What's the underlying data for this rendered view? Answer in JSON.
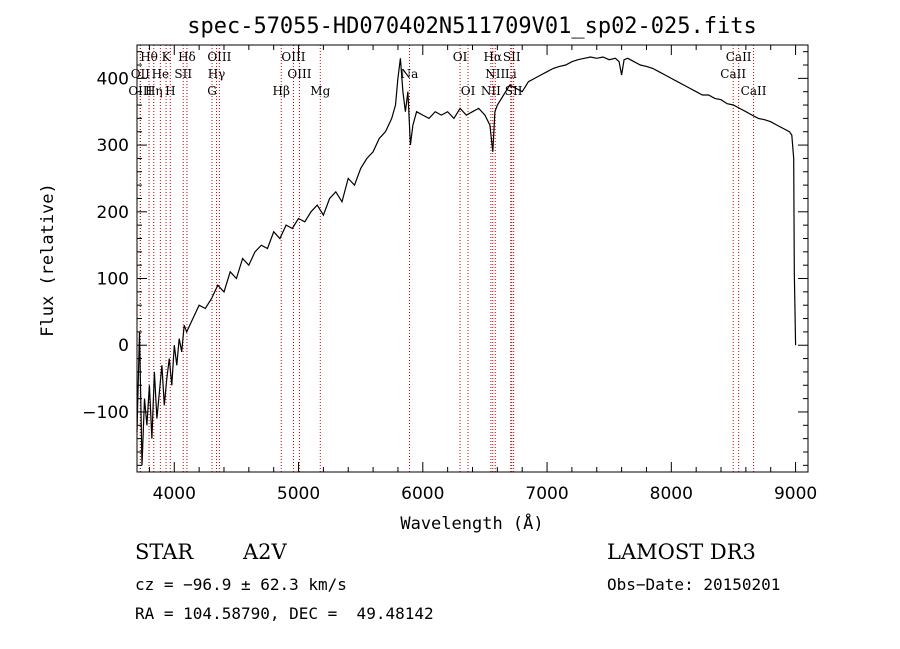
{
  "chart_data": {
    "type": "line",
    "title": "spec-57055-HD070402N511709V01_sp02-025.fits",
    "xlabel": "Wavelength (Å)",
    "ylabel": "Flux (relative)",
    "xlim": [
      3700,
      9100
    ],
    "ylim": [
      -190,
      450
    ],
    "xticks": [
      4000,
      5000,
      6000,
      7000,
      8000,
      9000
    ],
    "yticks": [
      -100,
      0,
      100,
      200,
      300,
      400
    ],
    "xtick_labels": [
      "4000",
      "5000",
      "6000",
      "7000",
      "8000",
      "9000"
    ],
    "ytick_labels": [
      "−100",
      "0",
      "100",
      "200",
      "300",
      "400"
    ],
    "series": [
      {
        "name": "flux",
        "x": [
          3700,
          3720,
          3740,
          3760,
          3780,
          3800,
          3820,
          3840,
          3860,
          3880,
          3900,
          3920,
          3940,
          3960,
          3980,
          4000,
          4020,
          4040,
          4060,
          4080,
          4100,
          4150,
          4200,
          4250,
          4300,
          4350,
          4400,
          4450,
          4500,
          4550,
          4600,
          4650,
          4700,
          4750,
          4800,
          4850,
          4900,
          4950,
          5000,
          5050,
          5100,
          5150,
          5200,
          5250,
          5300,
          5350,
          5400,
          5450,
          5500,
          5550,
          5600,
          5650,
          5700,
          5750,
          5780,
          5800,
          5820,
          5840,
          5860,
          5880,
          5900,
          5920,
          5950,
          6000,
          6050,
          6100,
          6150,
          6200,
          6250,
          6300,
          6350,
          6400,
          6450,
          6500,
          6540,
          6563,
          6580,
          6600,
          6650,
          6700,
          6750,
          6800,
          6850,
          6900,
          6950,
          7000,
          7050,
          7100,
          7150,
          7200,
          7250,
          7300,
          7350,
          7400,
          7450,
          7500,
          7550,
          7580,
          7600,
          7620,
          7650,
          7700,
          7750,
          7800,
          7850,
          7900,
          7950,
          8000,
          8050,
          8100,
          8150,
          8200,
          8250,
          8300,
          8350,
          8400,
          8450,
          8500,
          8550,
          8600,
          8650,
          8700,
          8750,
          8800,
          8850,
          8900,
          8950,
          8970,
          8985,
          8990,
          9000
        ],
        "y": [
          -130,
          20,
          -180,
          -80,
          -120,
          -60,
          -140,
          -40,
          -110,
          -70,
          -30,
          -90,
          -50,
          -20,
          -60,
          0,
          -30,
          10,
          -10,
          30,
          20,
          40,
          60,
          55,
          70,
          90,
          80,
          110,
          100,
          130,
          120,
          140,
          150,
          145,
          170,
          160,
          180,
          175,
          190,
          185,
          200,
          210,
          195,
          220,
          230,
          215,
          250,
          240,
          265,
          280,
          290,
          310,
          320,
          340,
          360,
          400,
          430,
          380,
          350,
          380,
          300,
          330,
          350,
          345,
          340,
          350,
          345,
          350,
          340,
          355,
          345,
          350,
          355,
          345,
          330,
          290,
          350,
          360,
          375,
          390,
          385,
          380,
          395,
          400,
          405,
          410,
          415,
          418,
          420,
          425,
          428,
          430,
          432,
          430,
          432,
          428,
          430,
          425,
          405,
          428,
          430,
          425,
          420,
          418,
          415,
          410,
          405,
          400,
          395,
          390,
          385,
          380,
          375,
          375,
          370,
          368,
          362,
          360,
          355,
          350,
          345,
          340,
          338,
          335,
          330,
          325,
          320,
          315,
          280,
          110,
          0
        ]
      }
    ],
    "spectral_lines": [
      {
        "name": "Hθ",
        "x": 3797,
        "row": 0
      },
      {
        "name": "K",
        "x": 3934,
        "row": 0
      },
      {
        "name": "Hδ",
        "x": 4102,
        "row": 0
      },
      {
        "name": "OIII",
        "x": 4363,
        "row": 0
      },
      {
        "name": "OIII",
        "x": 4959,
        "row": 0
      },
      {
        "name": "OI",
        "x": 6300,
        "row": 0
      },
      {
        "name": "Hα",
        "x": 6563,
        "row": 0
      },
      {
        "name": "SII",
        "x": 6716,
        "row": 0
      },
      {
        "name": "CaII",
        "x": 8542,
        "row": 0
      },
      {
        "name": "OII",
        "x": 3727,
        "row": 1
      },
      {
        "name": "He",
        "x": 3888,
        "row": 1
      },
      {
        "name": "SII",
        "x": 4072,
        "row": 1
      },
      {
        "name": "Hγ",
        "x": 4340,
        "row": 1
      },
      {
        "name": "OIII",
        "x": 5007,
        "row": 1
      },
      {
        "name": "Na",
        "x": 5893,
        "row": 1
      },
      {
        "name": "NII",
        "x": 6583,
        "row": 1
      },
      {
        "name": "Li",
        "x": 6708,
        "row": 1
      },
      {
        "name": "CaII",
        "x": 8498,
        "row": 1
      },
      {
        "name": "OIII",
        "x": 3727,
        "row": 2
      },
      {
        "name": "Hη",
        "x": 3835,
        "row": 2
      },
      {
        "name": "H",
        "x": 3968,
        "row": 2
      },
      {
        "name": "G",
        "x": 4304,
        "row": 2
      },
      {
        "name": "Hβ",
        "x": 4861,
        "row": 2
      },
      {
        "name": "Mg",
        "x": 5175,
        "row": 2
      },
      {
        "name": "OI",
        "x": 6364,
        "row": 2
      },
      {
        "name": "NII",
        "x": 6548,
        "row": 2
      },
      {
        "name": "SII",
        "x": 6731,
        "row": 2
      },
      {
        "name": "CaII",
        "x": 8662,
        "row": 2
      }
    ]
  },
  "info": {
    "object_type": "STAR",
    "subclass": "A2V",
    "survey": "LAMOST DR3",
    "cz": "cz = −96.9 ± 62.3 km/s",
    "obs_date": "Obs−Date: 20150201",
    "ra_dec": "RA = 104.58790, DEC =  49.48142"
  },
  "colors": {
    "line_marker": "#cc0000",
    "spectrum": "#000000"
  }
}
